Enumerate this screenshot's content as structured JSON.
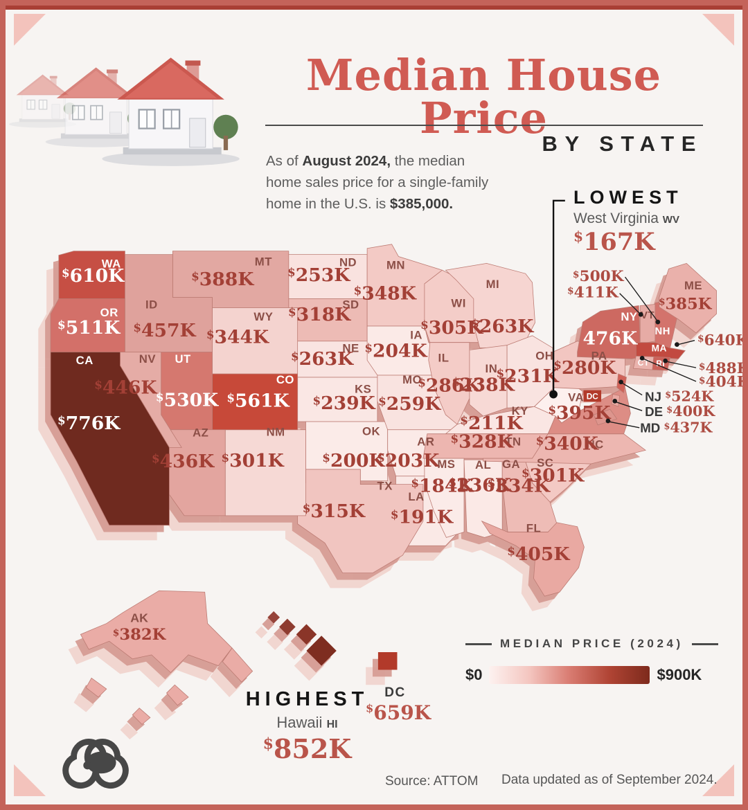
{
  "header": {
    "title": "Median House Price",
    "by_state": "BY STATE",
    "intro": {
      "p1": "As of ",
      "b1": "August 2024,",
      "p2": " the median home sales price for a single-family home in the U.S. is ",
      "b2": "$385,000."
    }
  },
  "callouts": {
    "lowest": {
      "label": "LOWEST",
      "state": "West Virginia",
      "abbr": "WV",
      "value": "$167K"
    },
    "highest": {
      "label": "HIGHEST",
      "state": "Hawaii",
      "abbr": "HI",
      "value": "$852K"
    },
    "dc": {
      "label": "DC",
      "value": "$659K"
    }
  },
  "map_extras": {
    "va_dc_badge": "DC"
  },
  "legend": {
    "title": "MEDIAN PRICE (2024)",
    "min": "$0",
    "max": "$900K",
    "gradient": [
      "#fdf2f0",
      "#f4c6c0",
      "#d97c72",
      "#b04434",
      "#7d2a1c"
    ]
  },
  "footer": {
    "source": "Source: ATTOM",
    "updated": "Data updated as of September 2024."
  },
  "chart_data": {
    "type": "heatmap",
    "subtype": "us-choropleth-map",
    "title": "Median House Price by State",
    "as_of": "August 2024",
    "us_median_display": "$385,000",
    "scale": {
      "min_label": "$0",
      "max_label": "$900K",
      "min_k": 0,
      "max_k": 900
    },
    "lowest": {
      "abbr": "WV",
      "name": "West Virginia",
      "value_k": 167
    },
    "highest": {
      "abbr": "HI",
      "name": "Hawaii",
      "value_k": 852
    },
    "states": [
      {
        "abbr": "WA",
        "value_k": 610,
        "display": "$610K",
        "color": "#c64f44",
        "text": "light"
      },
      {
        "abbr": "OR",
        "value_k": 511,
        "display": "$511K",
        "color": "#d37069",
        "text": "light"
      },
      {
        "abbr": "CA",
        "value_k": 776,
        "display": "$776K",
        "color": "#6f2a1f",
        "text": "light"
      },
      {
        "abbr": "ID",
        "value_k": 457,
        "display": "$457K",
        "color": "#dfa29c",
        "text": "dark"
      },
      {
        "abbr": "NV",
        "value_k": 446,
        "display": "$446K",
        "color": "#e5aca6",
        "text": "dark"
      },
      {
        "abbr": "UT",
        "value_k": 530,
        "display": "$530K",
        "color": "#d5786f",
        "text": "light"
      },
      {
        "abbr": "AZ",
        "value_k": 436,
        "display": "$436K",
        "color": "#e3a59f",
        "text": "dark"
      },
      {
        "abbr": "MT",
        "value_k": 388,
        "display": "$388K",
        "color": "#e2a8a2",
        "text": "dark"
      },
      {
        "abbr": "WY",
        "value_k": 344,
        "display": "$344K",
        "color": "#f4d3cf",
        "text": "dark"
      },
      {
        "abbr": "CO",
        "value_k": 561,
        "display": "$561K",
        "color": "#c74939",
        "text": "light"
      },
      {
        "abbr": "NM",
        "value_k": 301,
        "display": "$301K",
        "color": "#f6d9d5",
        "text": "dark"
      },
      {
        "abbr": "ND",
        "value_k": 253,
        "display": "$253K",
        "color": "#f9e2df",
        "text": "dark"
      },
      {
        "abbr": "SD",
        "value_k": 318,
        "display": "$318K",
        "color": "#edbbb5",
        "text": "dark"
      },
      {
        "abbr": "NE",
        "value_k": 263,
        "display": "$263K",
        "color": "#f9e4e1",
        "text": "dark"
      },
      {
        "abbr": "KS",
        "value_k": 239,
        "display": "$239K",
        "color": "#fae7e4",
        "text": "dark"
      },
      {
        "abbr": "OK",
        "value_k": 200,
        "display": "$200K",
        "color": "#fbebe8",
        "text": "dark"
      },
      {
        "abbr": "TX",
        "value_k": 315,
        "display": "$315K",
        "color": "#f1c5c0",
        "text": "dark"
      },
      {
        "abbr": "MN",
        "value_k": 348,
        "display": "$348K",
        "color": "#f3cac5",
        "text": "dark"
      },
      {
        "abbr": "IA",
        "value_k": 204,
        "display": "$204K",
        "color": "#fbeae7",
        "text": "dark"
      },
      {
        "abbr": "MO",
        "value_k": 259,
        "display": "$259K",
        "color": "#f9e3e0",
        "text": "dark"
      },
      {
        "abbr": "AR",
        "value_k": 203,
        "display": "$203K",
        "color": "#fbeae7",
        "text": "dark"
      },
      {
        "abbr": "LA",
        "value_k": 191,
        "display": "$191K",
        "color": "#fae9e6",
        "text": "dark"
      },
      {
        "abbr": "WI",
        "value_k": 305,
        "display": "$305K",
        "color": "#f4cdc8",
        "text": "dark"
      },
      {
        "abbr": "IL",
        "value_k": 286,
        "display": "$286K",
        "color": "#f4ccc7",
        "text": "dark"
      },
      {
        "abbr": "MS",
        "value_k": 184,
        "display": "$184K",
        "color": "#fbebe8",
        "text": "dark"
      },
      {
        "abbr": "MI",
        "value_k": 263,
        "display": "$263K",
        "color": "#f6d5d1",
        "text": "dark"
      },
      {
        "abbr": "IN",
        "value_k": 238,
        "display": "$238K",
        "color": "#f7d9d5",
        "text": "dark"
      },
      {
        "abbr": "KY",
        "value_k": 211,
        "display": "$211K",
        "color": "#fae6e3",
        "text": "dark"
      },
      {
        "abbr": "TN",
        "value_k": 328,
        "display": "$328K",
        "color": "#edb6b0",
        "text": "dark"
      },
      {
        "abbr": "AL",
        "value_k": 236,
        "display": "$236K",
        "color": "#fbe9e6",
        "text": "dark"
      },
      {
        "abbr": "OH",
        "value_k": 231,
        "display": "$231K",
        "color": "#f9e3e0",
        "text": "dark"
      },
      {
        "abbr": "GA",
        "value_k": 334,
        "display": "$334K",
        "color": "#eebcb6",
        "text": "dark"
      },
      {
        "abbr": "FL",
        "value_k": 405,
        "display": "$405K",
        "color": "#e9a9a2",
        "text": "dark"
      },
      {
        "abbr": "SC",
        "value_k": 301,
        "display": "$301K",
        "color": "#f3c9c4",
        "text": "dark"
      },
      {
        "abbr": "NC",
        "value_k": 340,
        "display": "$340K",
        "color": "#edb7b1",
        "text": "dark"
      },
      {
        "abbr": "VA",
        "value_k": 395,
        "display": "$395K",
        "color": "#dd8d85",
        "text": "dark"
      },
      {
        "abbr": "WV",
        "value_k": 167,
        "display": "$167K",
        "color": "#fdf0ee",
        "text": "dark"
      },
      {
        "abbr": "PA",
        "value_k": 280,
        "display": "$280K",
        "color": "#f2c6c1",
        "text": "dark"
      },
      {
        "abbr": "NY",
        "value_k": 476,
        "display": "476K",
        "color": "#cd6961",
        "text": "light"
      },
      {
        "abbr": "VT",
        "value_k": 411,
        "display": "$411K",
        "color": "#e6aba5",
        "text": "dark"
      },
      {
        "abbr": "NH",
        "value_k": 500,
        "display": "$500K",
        "color": "#d3736c",
        "text": "light"
      },
      {
        "abbr": "ME",
        "value_k": 385,
        "display": "$385K",
        "color": "#eab1ab",
        "text": "dark"
      },
      {
        "abbr": "MA",
        "value_k": 640,
        "display": "$640K",
        "color": "#c24a40",
        "text": "light"
      },
      {
        "abbr": "CT",
        "value_k": 404,
        "display": "$404K",
        "color": "#eab3ad",
        "text": "light"
      },
      {
        "abbr": "RI",
        "value_k": 488,
        "display": "$488K",
        "color": "#cc625a",
        "text": "light"
      },
      {
        "abbr": "NJ",
        "value_k": 524,
        "display": "$524K",
        "color": "#d06258",
        "text": "light"
      },
      {
        "abbr": "DE",
        "value_k": 400,
        "display": "$400K",
        "color": "#e9a9a2",
        "text": "dark"
      },
      {
        "abbr": "MD",
        "value_k": 437,
        "display": "$437K",
        "color": "#dd958d",
        "text": "dark"
      },
      {
        "abbr": "AK",
        "value_k": 382,
        "display": "$382K",
        "color": "#eaaca6",
        "text": "dark"
      },
      {
        "abbr": "HI",
        "value_k": 852,
        "display": "$852K",
        "color": "#8c3424",
        "text": "light"
      },
      {
        "abbr": "DC",
        "value_k": 659,
        "display": "$659K",
        "color": "#b23a2a",
        "text": "light"
      }
    ],
    "ne_callouts": [
      {
        "target": "NH",
        "prefix": "",
        "display": "$500K"
      },
      {
        "target": "VT",
        "prefix": "",
        "display": "$411K"
      },
      {
        "target": "MA",
        "prefix": "",
        "display": "$640K"
      },
      {
        "target": "RI",
        "prefix": "",
        "display": "$488K"
      },
      {
        "target": "CT",
        "prefix": "",
        "display": "$404K"
      },
      {
        "target": "NJ",
        "prefix": "NJ",
        "display": "$524K"
      },
      {
        "target": "DE",
        "prefix": "DE",
        "display": "$400K"
      },
      {
        "target": "MD",
        "prefix": "MD",
        "display": "$437K"
      }
    ]
  }
}
